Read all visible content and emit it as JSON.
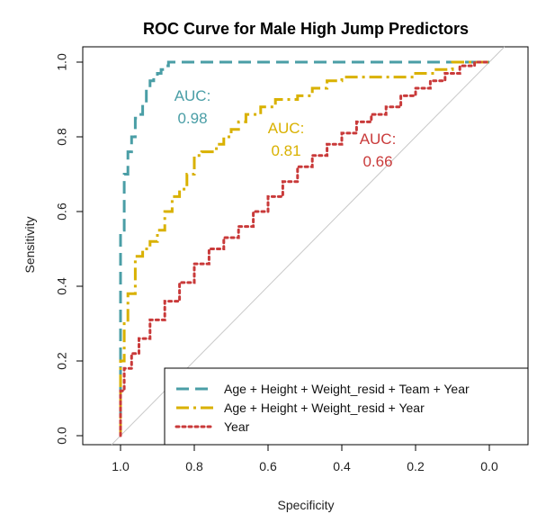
{
  "chart_data": {
    "type": "line",
    "title": "ROC Curve for Male High Jump Predictors",
    "xlabel": "Specificity",
    "ylabel": "Sensitivity",
    "xlim": [
      1.0,
      0.0
    ],
    "ylim": [
      0.0,
      1.0
    ],
    "x_reversed": true,
    "x_ticks": [
      "1.0",
      "0.8",
      "0.6",
      "0.4",
      "0.2",
      "0.0"
    ],
    "y_ticks": [
      "0.0",
      "0.2",
      "0.4",
      "0.6",
      "0.8",
      "1.0"
    ],
    "grid": false,
    "legend_position": "bottom-right",
    "reference_line": {
      "x": [
        1.0,
        0.0
      ],
      "y": [
        0.0,
        1.0
      ],
      "color": "#c8c8c8"
    },
    "series": [
      {
        "name": "Age + Height + Weight_resid + Team + Year",
        "color": "#4a9ea6",
        "dash": "dashed",
        "auc_label": "AUC:",
        "auc_value": "0.98",
        "x": [
          1.0,
          1.0,
          0.99,
          0.98,
          0.97,
          0.96,
          0.95,
          0.94,
          0.93,
          0.92,
          0.91,
          0.9,
          0.89,
          0.88,
          0.87,
          0.86,
          0.5,
          0.0
        ],
        "y": [
          0.0,
          0.3,
          0.55,
          0.7,
          0.76,
          0.8,
          0.85,
          0.86,
          0.89,
          0.93,
          0.95,
          0.96,
          0.97,
          0.98,
          0.99,
          1.0,
          1.0,
          1.0
        ]
      },
      {
        "name": "Age + Height + Weight_resid + Year",
        "color": "#d9b100",
        "dash": "dashdot",
        "auc_label": "AUC:",
        "auc_value": "0.81",
        "x": [
          1.0,
          0.99,
          0.98,
          0.96,
          0.94,
          0.92,
          0.9,
          0.88,
          0.86,
          0.84,
          0.82,
          0.8,
          0.78,
          0.76,
          0.74,
          0.72,
          0.7,
          0.68,
          0.66,
          0.64,
          0.62,
          0.58,
          0.55,
          0.52,
          0.48,
          0.44,
          0.4,
          0.36,
          0.3,
          0.25,
          0.2,
          0.15,
          0.1,
          0.05,
          0.0
        ],
        "y": [
          0.0,
          0.2,
          0.3,
          0.38,
          0.48,
          0.5,
          0.52,
          0.55,
          0.6,
          0.64,
          0.66,
          0.7,
          0.75,
          0.76,
          0.76,
          0.78,
          0.8,
          0.82,
          0.84,
          0.86,
          0.86,
          0.88,
          0.9,
          0.9,
          0.91,
          0.93,
          0.95,
          0.96,
          0.96,
          0.96,
          0.96,
          0.97,
          0.98,
          1.0,
          1.0
        ]
      },
      {
        "name": "Year",
        "color": "#c93a3a",
        "dash": "dotted",
        "auc_label": "AUC:",
        "auc_value": "0.66",
        "x": [
          1.0,
          0.99,
          0.97,
          0.95,
          0.92,
          0.88,
          0.84,
          0.8,
          0.76,
          0.72,
          0.68,
          0.64,
          0.6,
          0.56,
          0.52,
          0.48,
          0.44,
          0.4,
          0.36,
          0.32,
          0.28,
          0.24,
          0.2,
          0.16,
          0.12,
          0.08,
          0.04,
          0.0
        ],
        "y": [
          0.0,
          0.12,
          0.18,
          0.22,
          0.26,
          0.31,
          0.36,
          0.41,
          0.46,
          0.5,
          0.53,
          0.56,
          0.6,
          0.64,
          0.68,
          0.72,
          0.75,
          0.78,
          0.81,
          0.84,
          0.86,
          0.88,
          0.91,
          0.93,
          0.95,
          0.97,
          0.99,
          1.0
        ]
      }
    ]
  }
}
